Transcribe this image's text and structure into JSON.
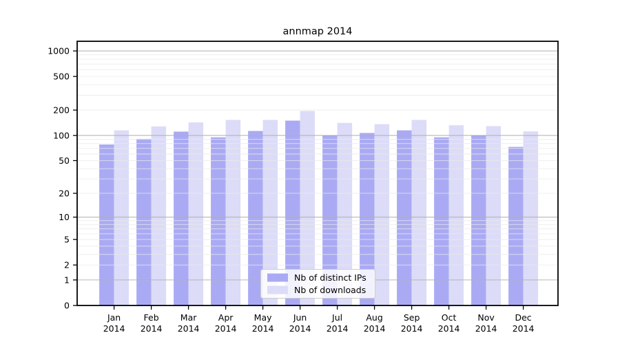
{
  "chart_data": {
    "type": "bar",
    "title": "annmap 2014",
    "categories": [
      "Jan",
      "Feb",
      "Mar",
      "Apr",
      "May",
      "Jun",
      "Jul",
      "Aug",
      "Sep",
      "Oct",
      "Nov",
      "Dec"
    ],
    "year_label": "2014",
    "series": [
      {
        "name": "Nb of distinct IPs",
        "color": "#aaaaf4",
        "values": [
          78,
          91,
          111,
          95,
          113,
          150,
          100,
          107,
          115,
          95,
          100,
          73
        ]
      },
      {
        "name": "Nb of downloads",
        "color": "#dcdcf8",
        "values": [
          115,
          128,
          143,
          153,
          153,
          195,
          141,
          136,
          153,
          132,
          129,
          112
        ]
      }
    ],
    "yscale": "log1p",
    "ylim": [
      0,
      1300
    ],
    "yticks": [
      0,
      1,
      2,
      5,
      10,
      20,
      50,
      100,
      200,
      500,
      1000
    ],
    "grid": {
      "on": true,
      "major": [
        1,
        10,
        100,
        1000
      ],
      "minor": [
        2,
        3,
        4,
        5,
        6,
        7,
        8,
        9,
        20,
        30,
        40,
        50,
        60,
        70,
        80,
        90,
        200,
        300,
        400,
        500,
        600,
        700,
        800,
        900
      ],
      "major_color": "#b0b0b0",
      "minor_color": "#e9e9e9"
    },
    "legend": {
      "position": "lower center",
      "entries": [
        "Nb of distinct IPs",
        "Nb of downloads"
      ]
    },
    "xlabel": "",
    "ylabel": ""
  }
}
